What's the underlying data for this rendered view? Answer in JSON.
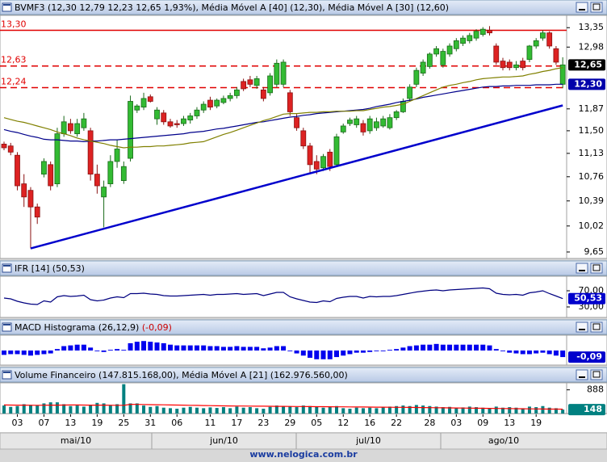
{
  "chart_data": [
    {
      "type": "candlestick",
      "title": [
        {
          "text": "BVMF3 (12,30 12,79 12,23 12,65 1,93%)",
          "color": "#000000"
        },
        {
          "text": ", Média Móvel A [40] (12,30)",
          "color": "#000000"
        },
        {
          "text": ", Média Móvel A [30] (12,60)",
          "color": "#000000"
        }
      ],
      "categories": [
        null,
        null,
        "03",
        null,
        null,
        null,
        "07",
        null,
        null,
        null,
        "13",
        null,
        null,
        null,
        "19",
        null,
        null,
        null,
        "25",
        null,
        null,
        null,
        "31",
        null,
        null,
        null,
        "06",
        null,
        null,
        null,
        null,
        "11",
        null,
        null,
        null,
        "17",
        null,
        null,
        null,
        "23",
        null,
        null,
        null,
        "29",
        null,
        null,
        null,
        "05",
        null,
        null,
        null,
        "12",
        null,
        null,
        null,
        "16",
        null,
        null,
        null,
        "22",
        null,
        null,
        null,
        null,
        "28",
        null,
        null,
        null,
        "03",
        null,
        null,
        null,
        "09",
        null,
        null,
        null,
        "13",
        null,
        null,
        null,
        "19",
        null,
        null,
        null,
        null
      ],
      "months": [
        "mai/10",
        "jun/10",
        "jul/10",
        "ago/10"
      ],
      "open": [
        11.28,
        11.25,
        11.1,
        10.65,
        10.55,
        10.3,
        10.8,
        10.95,
        10.65,
        11.45,
        11.62,
        11.45,
        11.55,
        11.5,
        10.8,
        10.45,
        10.65,
        11.0,
        10.7,
        11.05,
        11.85,
        11.9,
        12.08,
        11.7,
        11.8,
        11.65,
        11.62,
        11.62,
        11.68,
        11.75,
        11.85,
        12.02,
        11.92,
        11.98,
        12.05,
        12.1,
        12.35,
        12.38,
        12.28,
        12.2,
        12.15,
        12.3,
        12.3,
        12.15,
        11.72,
        11.5,
        11.25,
        11.0,
        10.9,
        11.15,
        10.95,
        11.48,
        11.62,
        11.6,
        11.62,
        11.5,
        11.55,
        11.58,
        11.55,
        11.72,
        11.82,
        12.05,
        12.3,
        12.5,
        12.62,
        12.85,
        12.65,
        12.85,
        12.95,
        13.05,
        13.1,
        13.15,
        13.22,
        13.3,
        13.0,
        12.72,
        12.7,
        12.6,
        12.72,
        12.75,
        13.0,
        13.15,
        13.25,
        12.95,
        12.3
      ],
      "high": [
        11.32,
        11.3,
        11.15,
        10.8,
        10.6,
        10.35,
        11.05,
        11.0,
        11.55,
        11.75,
        11.7,
        11.7,
        11.8,
        11.55,
        10.95,
        10.7,
        11.1,
        11.35,
        11.0,
        12.1,
        11.95,
        12.15,
        12.12,
        11.9,
        11.85,
        11.7,
        11.68,
        11.75,
        11.8,
        11.9,
        12.0,
        12.08,
        12.05,
        12.1,
        12.15,
        12.25,
        12.4,
        12.45,
        12.45,
        12.25,
        12.5,
        12.75,
        12.75,
        12.2,
        11.78,
        11.55,
        11.3,
        11.1,
        11.12,
        11.2,
        11.45,
        11.62,
        11.72,
        11.75,
        11.68,
        11.75,
        11.72,
        11.75,
        11.78,
        11.85,
        12.05,
        12.3,
        12.6,
        12.75,
        12.88,
        13.0,
        12.95,
        13.05,
        13.15,
        13.2,
        13.25,
        13.32,
        13.36,
        13.38,
        13.05,
        12.78,
        12.75,
        12.72,
        12.78,
        13.02,
        13.15,
        13.3,
        13.28,
        13.0,
        12.79
      ],
      "low": [
        11.18,
        11.1,
        10.55,
        10.3,
        9.7,
        10.05,
        10.75,
        10.55,
        10.6,
        11.4,
        11.45,
        11.4,
        11.5,
        10.7,
        10.5,
        10.0,
        10.6,
        10.9,
        10.65,
        11.0,
        11.8,
        11.85,
        11.98,
        11.6,
        11.6,
        11.55,
        11.55,
        11.58,
        11.62,
        11.7,
        11.8,
        11.85,
        11.88,
        11.95,
        12.0,
        12.05,
        12.18,
        12.25,
        12.22,
        12.0,
        12.1,
        12.25,
        12.25,
        11.75,
        11.5,
        11.2,
        10.8,
        10.8,
        10.85,
        10.85,
        10.92,
        11.45,
        11.58,
        11.55,
        11.42,
        11.45,
        11.5,
        11.55,
        11.52,
        11.68,
        11.8,
        12.0,
        12.25,
        12.45,
        12.58,
        12.8,
        12.6,
        12.8,
        12.9,
        13.0,
        13.05,
        13.1,
        13.18,
        13.2,
        12.65,
        12.55,
        12.55,
        12.55,
        12.55,
        12.7,
        12.95,
        13.1,
        12.95,
        12.65,
        12.23
      ],
      "close": [
        11.22,
        11.15,
        10.62,
        10.45,
        10.3,
        10.15,
        11.0,
        10.62,
        11.45,
        11.65,
        11.5,
        11.62,
        11.7,
        10.8,
        10.62,
        10.6,
        11.0,
        11.2,
        10.92,
        12.0,
        11.92,
        12.05,
        12.0,
        11.85,
        11.65,
        11.58,
        11.6,
        11.7,
        11.75,
        11.85,
        11.95,
        11.9,
        12.02,
        12.05,
        12.1,
        12.2,
        12.22,
        12.3,
        12.4,
        12.05,
        12.45,
        12.68,
        12.7,
        11.82,
        11.55,
        11.25,
        10.95,
        10.88,
        11.08,
        10.92,
        11.4,
        11.58,
        11.68,
        11.7,
        11.48,
        11.7,
        11.65,
        11.7,
        11.72,
        11.82,
        12.0,
        12.25,
        12.55,
        12.7,
        12.85,
        12.95,
        12.9,
        13.0,
        13.1,
        13.15,
        13.2,
        13.28,
        13.32,
        13.25,
        12.7,
        12.6,
        12.6,
        12.65,
        12.6,
        13.0,
        13.1,
        13.25,
        13.0,
        12.7,
        12.65
      ],
      "up_color": "#33bb33",
      "down_color": "#dd2222",
      "series": [
        {
          "color": "#00008b",
          "values": [
            11.52,
            11.49,
            11.47,
            11.44,
            11.41,
            11.39,
            11.36,
            11.35,
            11.35,
            11.34,
            11.33,
            11.33,
            11.32,
            11.33,
            11.33,
            11.34,
            11.35,
            11.35,
            11.36,
            11.37,
            11.38,
            11.39,
            11.4,
            11.41,
            11.42,
            11.43,
            11.44,
            11.45,
            11.47,
            11.48,
            11.49,
            11.51,
            11.53,
            11.54,
            11.56,
            11.58,
            11.6,
            11.62,
            11.64,
            11.65,
            11.67,
            11.69,
            11.71,
            11.73,
            11.74,
            11.76,
            11.77,
            11.79,
            11.8,
            11.81,
            11.82,
            11.83,
            11.84,
            11.85,
            11.86,
            11.88,
            11.91,
            11.93,
            11.95,
            11.98,
            12.0,
            12.02,
            12.04,
            12.07,
            12.09,
            12.11,
            12.13,
            12.15,
            12.17,
            12.19,
            12.21,
            12.23,
            12.25,
            12.26,
            12.26,
            12.27,
            12.27,
            12.28,
            12.28,
            12.28,
            12.29,
            12.29,
            12.29,
            12.3,
            12.3
          ]
        },
        {
          "color": "#808000",
          "values": [
            11.72,
            11.69,
            11.66,
            11.64,
            11.61,
            11.58,
            11.55,
            11.52,
            11.48,
            11.45,
            11.42,
            11.38,
            11.35,
            11.33,
            11.31,
            11.29,
            11.26,
            11.24,
            11.22,
            11.23,
            11.23,
            11.24,
            11.24,
            11.25,
            11.25,
            11.26,
            11.27,
            11.28,
            11.3,
            11.31,
            11.32,
            11.36,
            11.4,
            11.44,
            11.47,
            11.51,
            11.55,
            11.59,
            11.63,
            11.67,
            11.7,
            11.74,
            11.78,
            11.79,
            11.79,
            11.8,
            11.81,
            11.81,
            11.82,
            11.82,
            11.83,
            11.83,
            11.83,
            11.84,
            11.84,
            11.86,
            11.88,
            11.9,
            11.91,
            11.93,
            11.95,
            12.0,
            12.05,
            12.1,
            12.15,
            12.2,
            12.25,
            12.28,
            12.3,
            12.33,
            12.35,
            12.38,
            12.4,
            12.41,
            12.42,
            12.43,
            12.43,
            12.44,
            12.45,
            12.48,
            12.5,
            12.53,
            12.55,
            12.58,
            12.6
          ]
        }
      ],
      "ylim": [
        9.56,
        13.59
      ],
      "log_scale": true,
      "yticks": [
        {
          "value": 13.35,
          "label": "13,35"
        },
        {
          "value": 12.98,
          "label": "12,98"
        },
        {
          "value": 11.87,
          "label": "11,87"
        },
        {
          "value": 11.5,
          "label": "11,50"
        },
        {
          "value": 11.13,
          "label": "11,13"
        },
        {
          "value": 10.76,
          "label": "10,76"
        },
        {
          "value": 10.39,
          "label": "10,39"
        },
        {
          "value": 10.02,
          "label": "10,02"
        },
        {
          "value": 9.65,
          "label": "9,65"
        }
      ],
      "levels": [
        {
          "value": 13.3,
          "label": "13,30",
          "style": "solid"
        },
        {
          "value": 12.63,
          "label": "12,63",
          "style": "dashed"
        },
        {
          "value": 12.24,
          "label": "12,24",
          "style": "dashed"
        }
      ],
      "level_color": "#e00000",
      "trendline": {
        "color": "#0000cc",
        "values": [
          9.7,
          11.93
        ]
      },
      "last_labels": [
        {
          "value": 12.65,
          "label": "12,65",
          "color": "#000000"
        },
        {
          "value": 12.3,
          "label": "12,30",
          "color": "#0000aa"
        }
      ]
    },
    {
      "type": "line",
      "title": [
        {
          "text": "IFR [14] (50,53)",
          "color": "#000000"
        }
      ],
      "color": "#000080",
      "values": [
        52,
        50,
        44,
        40,
        37,
        36,
        45,
        42,
        55,
        58,
        56,
        57,
        59,
        48,
        45,
        47,
        52,
        55,
        53,
        63,
        63,
        64,
        62,
        61,
        58,
        57,
        57,
        58,
        59,
        60,
        61,
        59,
        61,
        61,
        62,
        63,
        61,
        62,
        63,
        58,
        62,
        66,
        66,
        55,
        50,
        46,
        42,
        41,
        45,
        43,
        51,
        54,
        56,
        56,
        52,
        56,
        55,
        56,
        56,
        58,
        61,
        64,
        67,
        69,
        71,
        72,
        70,
        72,
        73,
        74,
        75,
        76,
        77,
        75,
        64,
        61,
        60,
        61,
        59,
        65,
        67,
        70,
        63,
        57,
        50.53
      ],
      "ylim": [
        4,
        106
      ],
      "yticks": [
        {
          "value": 70,
          "label": "70,00"
        },
        {
          "value": 30,
          "label": "30,00"
        }
      ],
      "last_labels": [
        {
          "value": 50.53,
          "label": "50,53",
          "color": "#0000cc"
        }
      ]
    },
    {
      "type": "bar",
      "title": [
        {
          "text": "MACD Histograma (26,12,9)",
          "color": "#000000"
        },
        {
          "text": " (-0,09)",
          "color": "#cc0000"
        }
      ],
      "color": "#0000ee",
      "values": [
        -0.06,
        -0.05,
        -0.05,
        -0.06,
        -0.07,
        -0.06,
        -0.05,
        -0.04,
        0.02,
        0.06,
        0.07,
        0.08,
        0.08,
        0.04,
        -0.01,
        -0.02,
        0.01,
        0.02,
        0.01,
        0.1,
        0.12,
        0.13,
        0.12,
        0.11,
        0.1,
        0.08,
        0.07,
        0.07,
        0.07,
        0.07,
        0.07,
        0.06,
        0.06,
        0.05,
        0.05,
        0.06,
        0.05,
        0.05,
        0.05,
        0.03,
        0.04,
        0.06,
        0.06,
        -0.01,
        -0.04,
        -0.07,
        -0.1,
        -0.12,
        -0.12,
        -0.12,
        -0.09,
        -0.07,
        -0.05,
        -0.03,
        -0.03,
        -0.02,
        -0.01,
        -0.01,
        0.01,
        0.02,
        0.04,
        0.06,
        0.07,
        0.08,
        0.08,
        0.09,
        0.08,
        0.08,
        0.08,
        0.08,
        0.08,
        0.08,
        0.08,
        0.07,
        0.02,
        -0.01,
        -0.03,
        -0.04,
        -0.05,
        -0.05,
        -0.04,
        -0.03,
        -0.05,
        -0.07,
        -0.09
      ],
      "ylim": [
        -0.2,
        0.21
      ],
      "last_labels": [
        {
          "value": -0.09,
          "label": "-0,09",
          "color": "#0000cc"
        }
      ]
    },
    {
      "type": "bar",
      "title": [
        {
          "text": "Volume Financeiro (147.815.168,00), Média Móvel A [21] (162.976.560,00)",
          "color": "#000000"
        }
      ],
      "color": "#008080",
      "values": [
        300,
        250,
        280,
        350,
        320,
        300,
        380,
        420,
        420,
        350,
        280,
        300,
        260,
        320,
        400,
        380,
        300,
        350,
        1100,
        380,
        380,
        300,
        250,
        280,
        220,
        200,
        180,
        220,
        250,
        220,
        200,
        230,
        210,
        240,
        200,
        260,
        220,
        240,
        200,
        180,
        250,
        300,
        280,
        260,
        240,
        300,
        280,
        260,
        220,
        240,
        280,
        200,
        180,
        220,
        200,
        220,
        200,
        240,
        260,
        280,
        300,
        280,
        320,
        300,
        280,
        260,
        240,
        250,
        220,
        230,
        260,
        240,
        220,
        200,
        260,
        220,
        240,
        220,
        200,
        260,
        240,
        280,
        220,
        200,
        147.815168
      ],
      "series": [
        {
          "color": "#ff0000",
          "values": [
            320,
            318,
            316,
            314,
            312,
            310,
            312,
            314,
            316,
            318,
            320,
            320,
            318,
            316,
            315,
            314,
            312,
            310,
            308,
            345,
            342,
            338,
            334,
            330,
            326,
            322,
            318,
            314,
            310,
            305,
            300,
            296,
            292,
            288,
            285,
            282,
            280,
            278,
            276,
            274,
            272,
            270,
            268,
            266,
            264,
            262,
            260,
            258,
            256,
            254,
            252,
            250,
            248,
            246,
            244,
            242,
            240,
            238,
            236,
            234,
            232,
            229,
            226,
            223,
            220,
            217,
            214,
            211,
            208,
            205,
            202,
            199,
            196,
            193,
            190,
            187,
            184,
            181,
            178,
            175,
            172,
            169,
            167,
            165,
            162.98
          ]
        }
      ],
      "ylim": [
        0,
        1150
      ],
      "yticks": [
        888
      ],
      "last_labels": [
        {
          "value": 147.815168,
          "label": "148",
          "color": "#008080"
        }
      ]
    }
  ],
  "footer": "www.nelogica.com.br"
}
